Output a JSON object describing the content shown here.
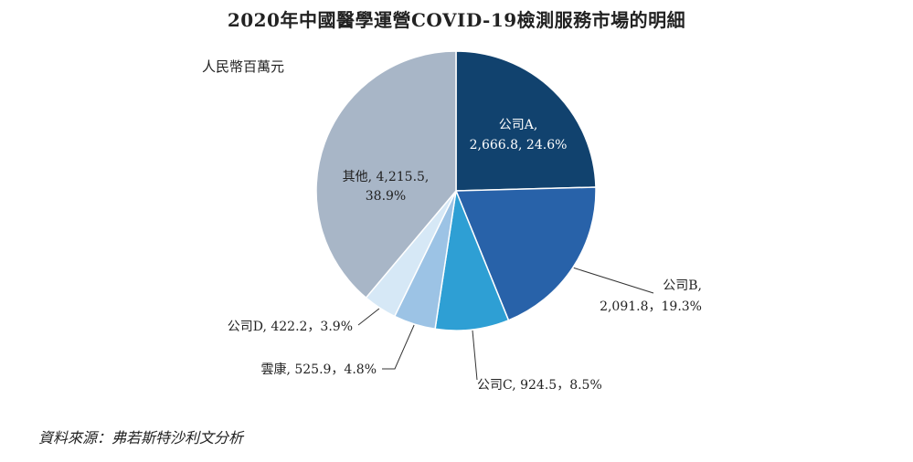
{
  "title": "2020年中國醫學運營COVID-19檢測服務市場的明細",
  "unit": "人民幣百萬元",
  "source": "資料來源：弗若斯特沙利文分析",
  "chart_data": {
    "type": "pie",
    "slices": [
      {
        "name": "公司A",
        "value": 2666.8,
        "percent": 24.6,
        "label_line1": "公司A,",
        "label_line2": "2,666.8, 24.6%",
        "color": "#11426e"
      },
      {
        "name": "公司B",
        "value": 2091.8,
        "percent": 19.3,
        "label_line1": "公司B,",
        "label_line2": "2,091.8，19.3%",
        "color": "#2862a9"
      },
      {
        "name": "公司C",
        "value": 924.5,
        "percent": 8.5,
        "label_line1": "公司C, 924.5，8.5%",
        "label_line2": "",
        "color": "#2e9fd4"
      },
      {
        "name": "雲康",
        "value": 525.9,
        "percent": 4.8,
        "label_line1": "雲康, 525.9，4.8%",
        "label_line2": "",
        "color": "#9cc3e5"
      },
      {
        "name": "公司D",
        "value": 422.2,
        "percent": 3.9,
        "label_line1": "公司D, 422.2，3.9%",
        "label_line2": "",
        "color": "#d6e8f6"
      },
      {
        "name": "其他",
        "value": 4215.5,
        "percent": 38.9,
        "label_line1": "其他, 4,215.5,",
        "label_line2": "38.9%",
        "color": "#a8b6c7"
      }
    ]
  }
}
